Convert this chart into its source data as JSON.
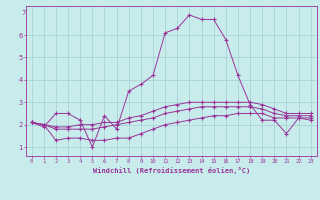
{
  "xlabel": "Windchill (Refroidissement éolien,°C)",
  "background_color": "#c8ecec",
  "grid_color": "#aad4d4",
  "line_color": "#993399",
  "xlim": [
    -0.5,
    23.5
  ],
  "ylim": [
    0.6,
    7.3
  ],
  "xticks": [
    0,
    1,
    2,
    3,
    4,
    5,
    6,
    7,
    8,
    9,
    10,
    11,
    12,
    13,
    14,
    15,
    16,
    17,
    18,
    19,
    20,
    21,
    22,
    23
  ],
  "yticks": [
    1,
    2,
    3,
    4,
    5,
    6
  ],
  "series": [
    [
      2.1,
      1.9,
      2.5,
      2.5,
      2.2,
      1.0,
      2.4,
      1.8,
      3.5,
      3.8,
      4.2,
      6.1,
      6.3,
      6.9,
      6.7,
      6.7,
      5.8,
      4.2,
      2.9,
      2.2,
      2.2,
      1.6,
      2.3,
      2.2
    ],
    [
      2.1,
      2.0,
      1.3,
      1.4,
      1.4,
      1.3,
      1.3,
      1.4,
      1.4,
      1.6,
      1.8,
      2.0,
      2.1,
      2.2,
      2.3,
      2.4,
      2.4,
      2.5,
      2.5,
      2.5,
      2.3,
      2.3,
      2.3,
      2.3
    ],
    [
      2.1,
      2.0,
      1.8,
      1.8,
      1.8,
      1.8,
      1.9,
      2.0,
      2.1,
      2.2,
      2.3,
      2.5,
      2.6,
      2.7,
      2.8,
      2.8,
      2.8,
      2.8,
      2.8,
      2.7,
      2.5,
      2.4,
      2.4,
      2.4
    ],
    [
      2.1,
      2.0,
      1.9,
      1.9,
      2.0,
      2.0,
      2.1,
      2.1,
      2.3,
      2.4,
      2.6,
      2.8,
      2.9,
      3.0,
      3.0,
      3.0,
      3.0,
      3.0,
      3.0,
      2.9,
      2.7,
      2.5,
      2.5,
      2.5
    ]
  ]
}
